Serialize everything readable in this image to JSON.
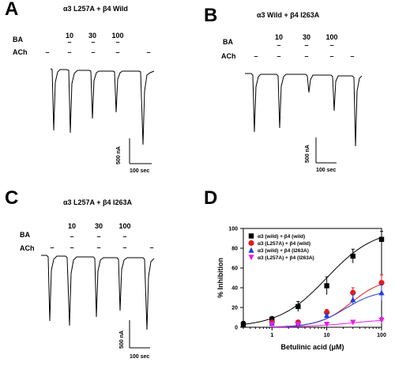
{
  "panels": {
    "A": {
      "letter": "A",
      "title": "α3 L257A + β4 Wild",
      "ba_label": "BA",
      "ach_label": "ACh",
      "concs": [
        "10",
        "30",
        "100"
      ],
      "scale_y": "500 nA",
      "scale_x": "100 sec"
    },
    "B": {
      "letter": "B",
      "title": "α3 Wild + β4 I263A",
      "ba_label": "BA",
      "ach_label": "ACh",
      "concs": [
        "10",
        "30",
        "100"
      ],
      "scale_y": "500 nA",
      "scale_x": "100 sec"
    },
    "C": {
      "letter": "C",
      "title": "α3 L257A + β4 I263A",
      "ba_label": "BA",
      "ach_label": "ACh",
      "concs": [
        "10",
        "30",
        "100"
      ],
      "scale_y": "500 nA",
      "scale_x": "100 sec"
    },
    "D": {
      "letter": "D"
    }
  },
  "chart_data": {
    "type": "scatter",
    "xlabel": "Betulinic acid (μM)",
    "ylabel": "% Inhibition",
    "xscale": "log",
    "xlim": [
      0.3,
      100
    ],
    "ylim": [
      0,
      100
    ],
    "xticks": [
      "1",
      "10",
      "100"
    ],
    "yticks": [
      "0",
      "20",
      "40",
      "60",
      "80",
      "100"
    ],
    "legend_position": "top-left",
    "series": [
      {
        "name": "α3 (wild) + β4 (wild)",
        "color": "#000000",
        "marker": "square",
        "x": [
          0.3,
          1,
          3,
          10,
          30,
          100
        ],
        "y": [
          3,
          8,
          21,
          42,
          72,
          89
        ],
        "err": [
          3,
          3,
          5,
          9,
          7,
          8
        ],
        "fit": {
          "ic50": 10,
          "hill": 1,
          "top": 100
        }
      },
      {
        "name": "α3 (L257A) + β4 (wild)",
        "color": "#e41a1c",
        "marker": "circle",
        "x": [
          1,
          3,
          10,
          30,
          100
        ],
        "y": [
          5,
          5,
          15,
          35,
          45
        ],
        "err": [
          1,
          2,
          3,
          5,
          8
        ],
        "fit": {
          "ic50": 28,
          "hill": 1.5,
          "top": 50
        }
      },
      {
        "name": "α3 (wild) + β4 (I263A)",
        "color": "#1f3fd8",
        "marker": "triangle-up",
        "x": [
          1,
          3,
          10,
          30,
          100
        ],
        "y": [
          4,
          4,
          12,
          28,
          35
        ],
        "err": [
          1,
          1,
          2,
          5,
          8
        ],
        "fit": {
          "ic50": 22,
          "hill": 1.5,
          "top": 38
        }
      },
      {
        "name": "α3 (L257A) + β4 (I263A)",
        "color": "#e61fe6",
        "marker": "triangle-down",
        "x": [
          1,
          3,
          10,
          30,
          100
        ],
        "y": [
          3,
          3,
          3,
          5,
          7
        ],
        "err": [
          1,
          1,
          1,
          2,
          3
        ],
        "fit": {
          "ic50": 30,
          "hill": 1,
          "top": 9
        }
      }
    ]
  }
}
